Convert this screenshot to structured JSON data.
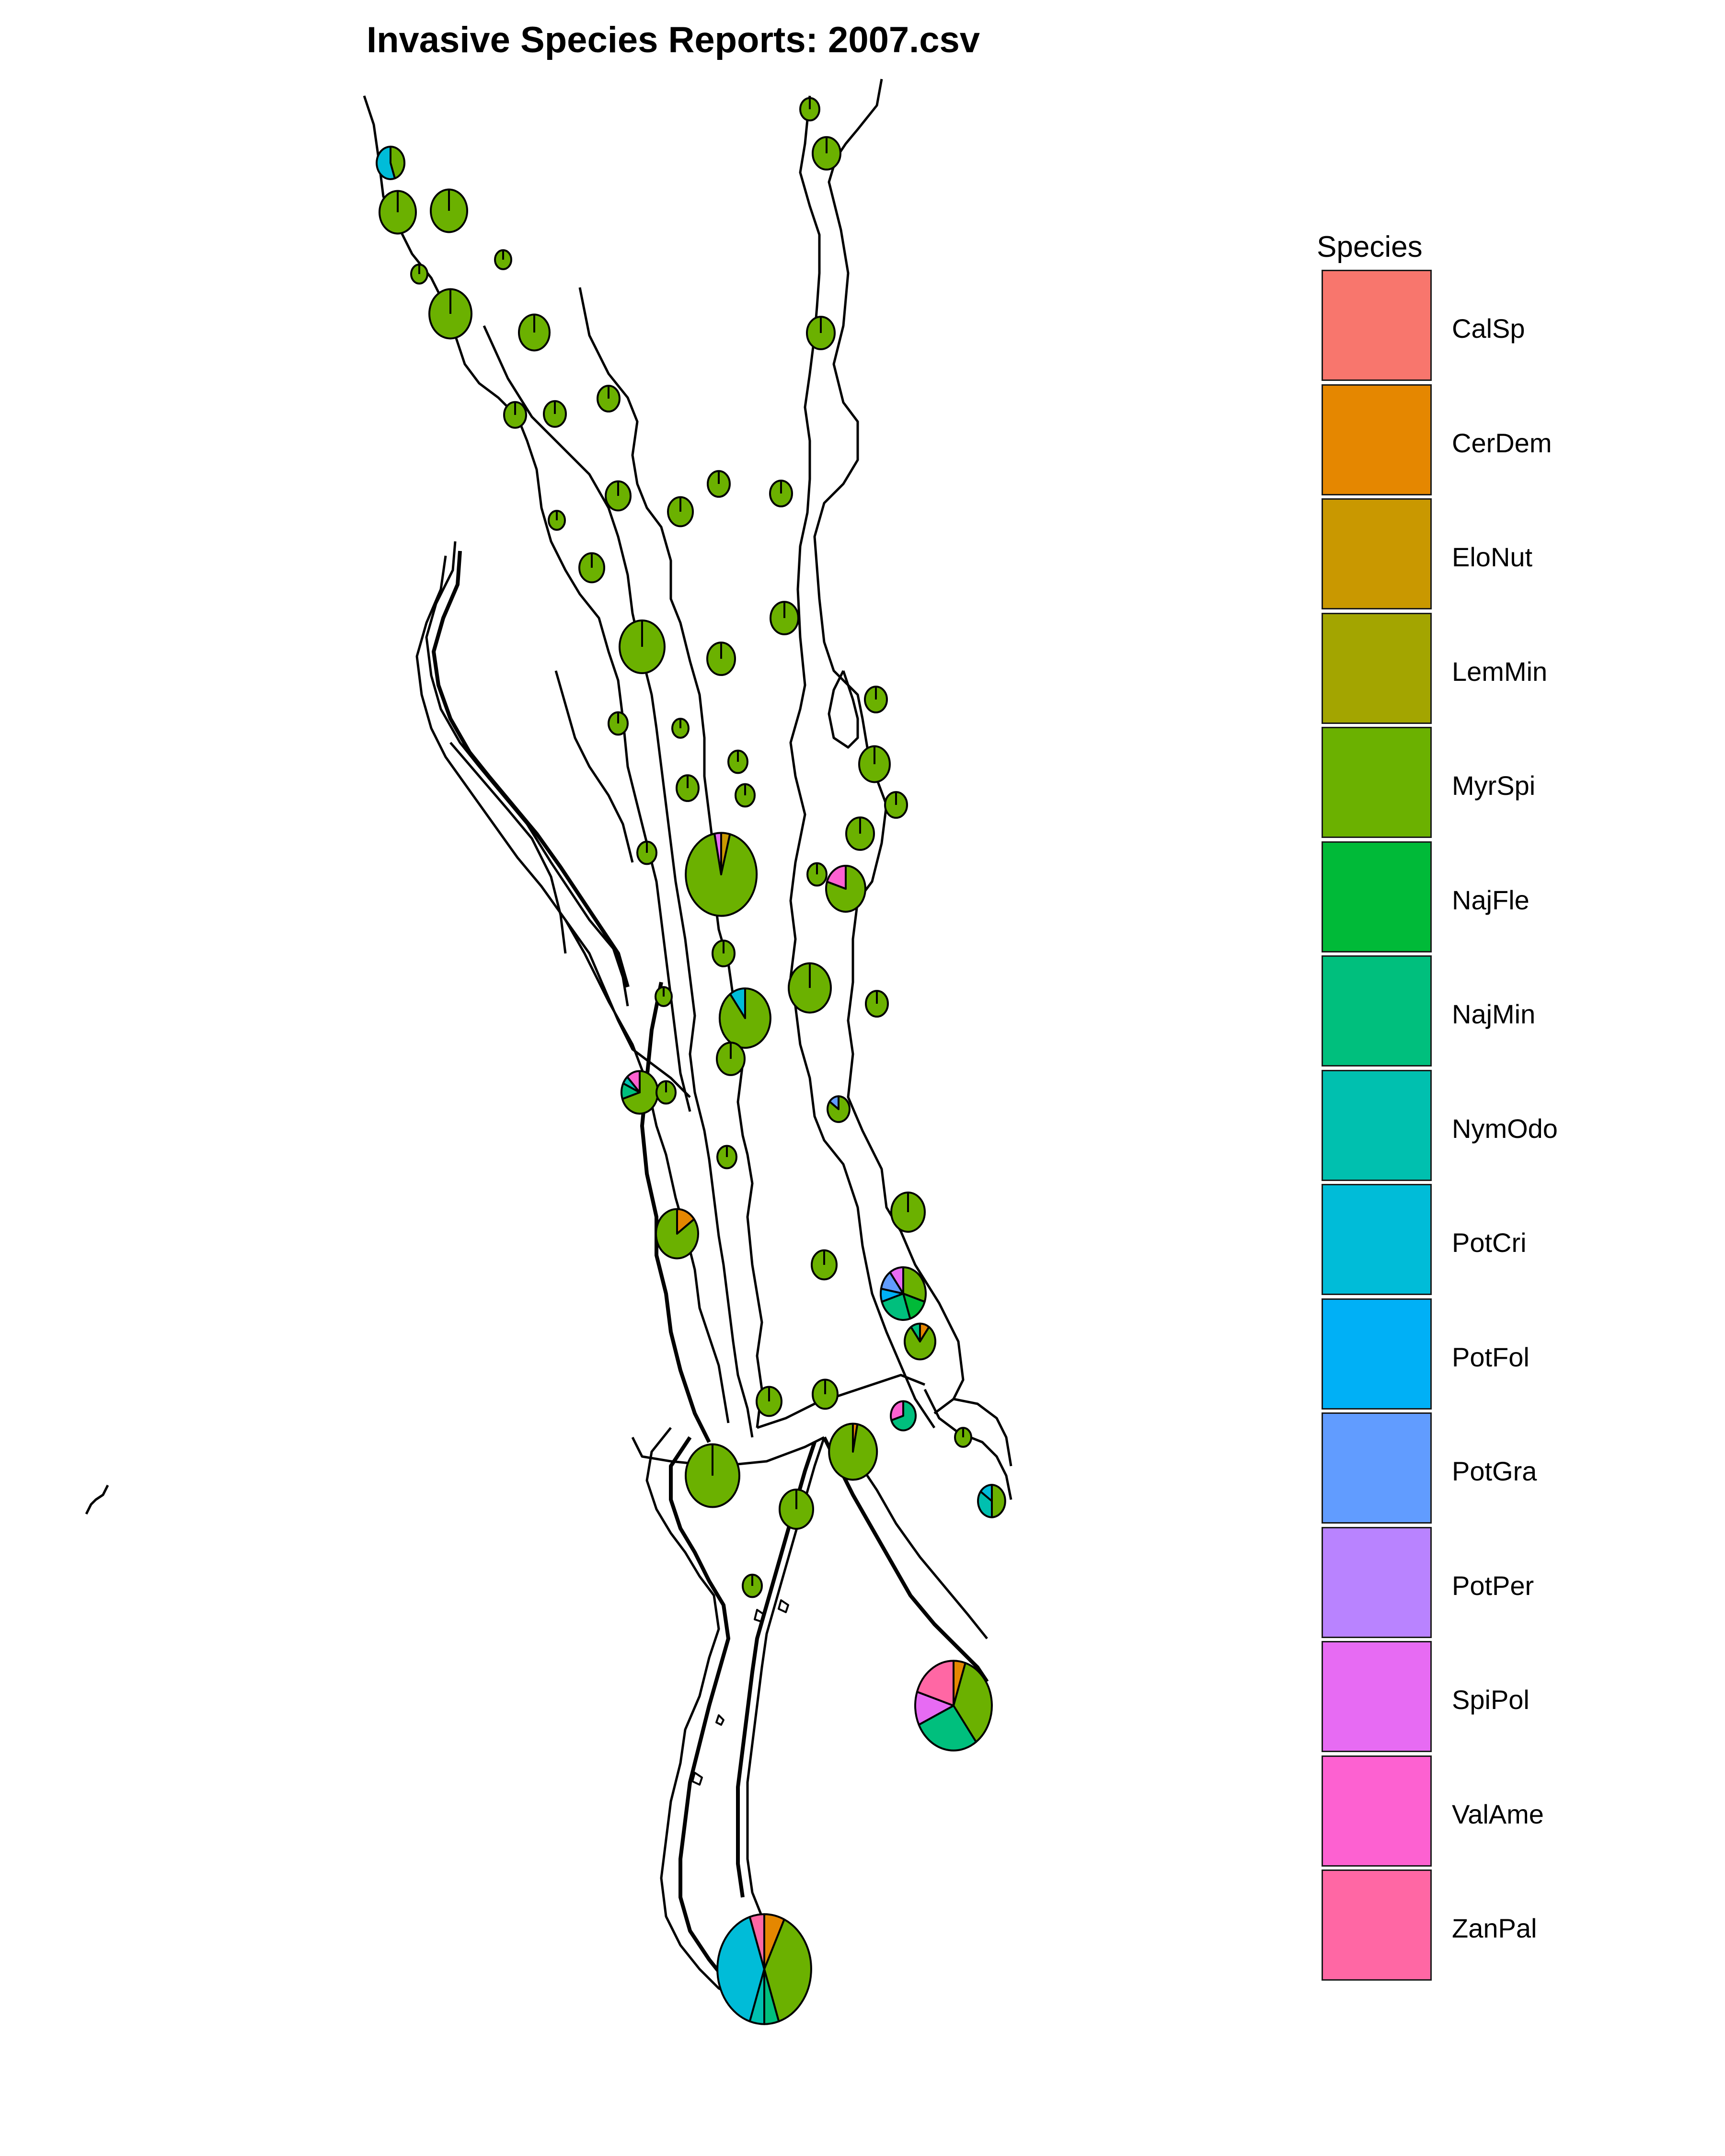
{
  "title": "Invasive Species Reports: 2007.csv",
  "legend": {
    "title": "Species",
    "items": [
      {
        "label": "CalSp",
        "color": "#F8766D"
      },
      {
        "label": "CerDem",
        "color": "#E58700"
      },
      {
        "label": "EloNut",
        "color": "#C99800"
      },
      {
        "label": "LemMin",
        "color": "#A3A500"
      },
      {
        "label": "MyrSpi",
        "color": "#6BB100"
      },
      {
        "label": "NajFle",
        "color": "#00BA38"
      },
      {
        "label": "NajMin",
        "color": "#00BF7D"
      },
      {
        "label": "NymOdo",
        "color": "#00C0AF"
      },
      {
        "label": "PotCri",
        "color": "#00BCD8"
      },
      {
        "label": "PotFol",
        "color": "#00B0F6"
      },
      {
        "label": "PotGra",
        "color": "#619CFF"
      },
      {
        "label": "PotPer",
        "color": "#B983FF"
      },
      {
        "label": "SpiPol",
        "color": "#E76BF3"
      },
      {
        "label": "ValAme",
        "color": "#FD61D1"
      },
      {
        "label": "ZanPal",
        "color": "#FF67A4"
      }
    ]
  },
  "chart_data": {
    "type": "map-pie",
    "title": "Invasive Species Reports: 2007.csv",
    "legend_placement": "right",
    "legend_title": "Species",
    "sites": [
      {
        "id": 1,
        "size": 0.2,
        "slices": {
          "MyrSpi": 1
        }
      },
      {
        "id": 2,
        "size": 0.5,
        "slices": {
          "MyrSpi": 1
        }
      },
      {
        "id": 3,
        "size": 0.5,
        "slices": {
          "PotCri": 0.55,
          "MyrSpi": 0.45
        }
      },
      {
        "id": 4,
        "size": 0.8,
        "slices": {
          "MyrSpi": 1
        }
      },
      {
        "id": 5,
        "size": 0.8,
        "slices": {
          "MyrSpi": 1
        }
      },
      {
        "id": 6,
        "size": 0.1,
        "slices": {
          "MyrSpi": 1
        }
      },
      {
        "id": 7,
        "size": 0.1,
        "slices": {
          "MyrSpi": 1
        }
      },
      {
        "id": 8,
        "size": 1.0,
        "slices": {
          "MyrSpi": 1
        }
      },
      {
        "id": 9,
        "size": 0.6,
        "slices": {
          "MyrSpi": 1
        }
      },
      {
        "id": 10,
        "size": 0.3,
        "slices": {
          "MyrSpi": 1
        }
      },
      {
        "id": 11,
        "size": 0.3,
        "slices": {
          "MyrSpi": 1
        }
      },
      {
        "id": 12,
        "size": 0.3,
        "slices": {
          "MyrSpi": 1
        }
      },
      {
        "id": 13,
        "size": 0.3,
        "slices": {
          "MyrSpi": 1
        }
      },
      {
        "id": 14,
        "size": 0.3,
        "slices": {
          "MyrSpi": 1
        }
      },
      {
        "id": 15,
        "size": 0.4,
        "slices": {
          "MyrSpi": 1
        }
      },
      {
        "id": 16,
        "size": 0.4,
        "slices": {
          "MyrSpi": 1
        }
      },
      {
        "id": 17,
        "size": 0.5,
        "slices": {
          "MyrSpi": 1
        }
      },
      {
        "id": 18,
        "size": 0.1,
        "slices": {
          "MyrSpi": 1
        }
      },
      {
        "id": 19,
        "size": 0.4,
        "slices": {
          "MyrSpi": 1
        }
      },
      {
        "id": 20,
        "size": 1.1,
        "slices": {
          "MyrSpi": 1
        }
      },
      {
        "id": 21,
        "size": 0.5,
        "slices": {
          "MyrSpi": 1
        }
      },
      {
        "id": 22,
        "size": 0.5,
        "slices": {
          "MyrSpi": 1
        }
      },
      {
        "id": 23,
        "size": 0.2,
        "slices": {
          "MyrSpi": 1
        }
      },
      {
        "id": 24,
        "size": 0.1,
        "slices": {
          "MyrSpi": 1
        }
      },
      {
        "id": 25,
        "size": 0.3,
        "slices": {
          "MyrSpi": 1
        }
      },
      {
        "id": 26,
        "size": 0.6,
        "slices": {
          "MyrSpi": 1
        }
      },
      {
        "id": 27,
        "size": 0.2,
        "slices": {
          "MyrSpi": 1
        }
      },
      {
        "id": 28,
        "size": 0.3,
        "slices": {
          "MyrSpi": 1
        }
      },
      {
        "id": 29,
        "size": 0.2,
        "slices": {
          "MyrSpi": 1
        }
      },
      {
        "id": 30,
        "size": 0.3,
        "slices": {
          "MyrSpi": 1
        }
      },
      {
        "id": 31,
        "size": 0.5,
        "slices": {
          "MyrSpi": 1
        }
      },
      {
        "id": 32,
        "size": 0.2,
        "slices": {
          "MyrSpi": 1
        }
      },
      {
        "id": 33,
        "size": 2.0,
        "slices": {
          "MyrSpi": 0.93,
          "EloNut": 0.04,
          "SpiPol": 0.03
        }
      },
      {
        "id": 34,
        "size": 0.2,
        "slices": {
          "MyrSpi": 1
        }
      },
      {
        "id": 35,
        "size": 0.9,
        "slices": {
          "MyrSpi": 0.8,
          "ValAme": 0.2
        }
      },
      {
        "id": 36,
        "size": 0.3,
        "slices": {
          "MyrSpi": 1
        }
      },
      {
        "id": 37,
        "size": 1.0,
        "slices": {
          "MyrSpi": 1
        }
      },
      {
        "id": 38,
        "size": 0.3,
        "slices": {
          "MyrSpi": 1
        }
      },
      {
        "id": 39,
        "size": 1.3,
        "slices": {
          "MyrSpi": 0.9,
          "PotCri": 0.1
        }
      },
      {
        "id": 40,
        "size": 0.1,
        "slices": {
          "MyrSpi": 1
        }
      },
      {
        "id": 41,
        "size": 0.5,
        "slices": {
          "MyrSpi": 1
        }
      },
      {
        "id": 42,
        "size": 0.8,
        "slices": {
          "MyrSpi": 0.7,
          "NajMin": 0.12,
          "NymOdo": 0.06,
          "ValAme": 0.12
        }
      },
      {
        "id": 43,
        "size": 0.2,
        "slices": {
          "MyrSpi": 1
        }
      },
      {
        "id": 44,
        "size": 0.3,
        "slices": {
          "MyrSpi": 0.85,
          "PotGra": 0.15
        }
      },
      {
        "id": 45,
        "size": 0.2,
        "slices": {
          "MyrSpi": 1
        }
      },
      {
        "id": 46,
        "size": 0.7,
        "slices": {
          "MyrSpi": 1
        }
      },
      {
        "id": 47,
        "size": 1.0,
        "slices": {
          "MyrSpi": 0.85,
          "CerDem": 0.15
        }
      },
      {
        "id": 48,
        "size": 0.4,
        "slices": {
          "MyrSpi": 1
        }
      },
      {
        "id": 49,
        "size": 1.1,
        "slices": {
          "PotFol": 0.08,
          "PotGra": 0.12,
          "NajMin": 0.25,
          "MyrSpi": 0.3,
          "NajFle": 0.15,
          "SpiPol": 0.1
        }
      },
      {
        "id": 50,
        "size": 0.6,
        "slices": {
          "MyrSpi": 0.8,
          "CerDem": 0.1,
          "NajMin": 0.1
        }
      },
      {
        "id": 51,
        "size": 0.4,
        "slices": {
          "MyrSpi": 1
        }
      },
      {
        "id": 52,
        "size": 0.4,
        "slices": {
          "MyrSpi": 1
        }
      },
      {
        "id": 53,
        "size": 0.4,
        "slices": {
          "NajMin": 0.7,
          "ValAme": 0.3
        }
      },
      {
        "id": 54,
        "size": 0.1,
        "slices": {
          "MyrSpi": 1
        }
      },
      {
        "id": 55,
        "size": 1.2,
        "slices": {
          "MyrSpi": 0.97,
          "CerDem": 0.03
        }
      },
      {
        "id": 56,
        "size": 1.4,
        "slices": {
          "MyrSpi": 1
        }
      },
      {
        "id": 57,
        "size": 0.7,
        "slices": {
          "MyrSpi": 1
        }
      },
      {
        "id": 58,
        "size": 0.5,
        "slices": {
          "MyrSpi": 0.5,
          "NymOdo": 0.35,
          "PotCri": 0.15
        }
      },
      {
        "id": 59,
        "size": 0.2,
        "slices": {
          "MyrSpi": 1
        }
      },
      {
        "id": 60,
        "size": 2.2,
        "slices": {
          "MyrSpi": 0.35,
          "SpiPol": 0.12,
          "NajMin": 0.28,
          "ZanPal": 0.2,
          "CerDem": 0.05
        }
      },
      {
        "id": 61,
        "size": 2.8,
        "slices": {
          "CerDem": 0.07,
          "PotCri": 0.4,
          "MyrSpi": 0.38,
          "NajMin": 0.05,
          "ZanPal": 0.05,
          "NymOdo": 0.05
        }
      }
    ]
  }
}
